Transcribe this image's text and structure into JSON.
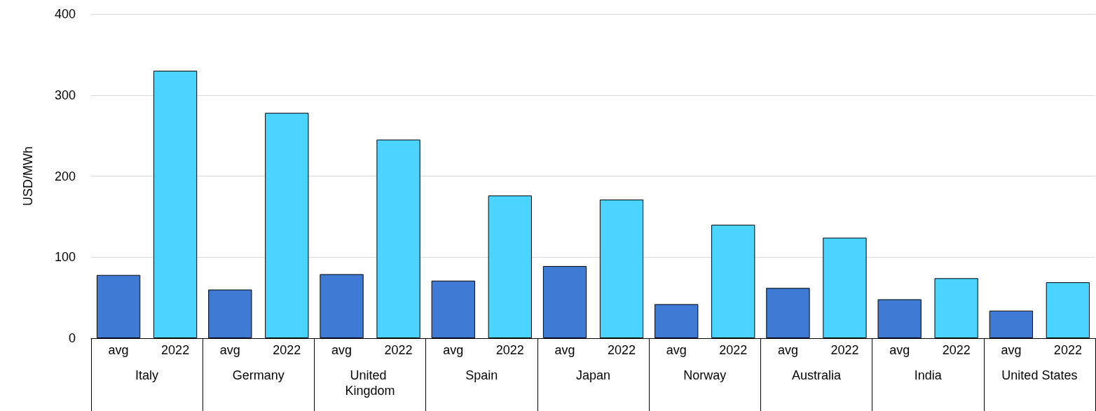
{
  "chart_data": {
    "type": "bar",
    "ylabel": "USD/MWh",
    "categories": [
      "Italy",
      "Germany",
      "United Kingdom",
      "Spain",
      "Japan",
      "Norway",
      "Australia",
      "India",
      "United States"
    ],
    "series": [
      {
        "name": "avg",
        "color": "#3f7bd4",
        "values": [
          78,
          60,
          79,
          71,
          89,
          42,
          62,
          48,
          34
        ]
      },
      {
        "name": "2022",
        "color": "#4ad4ff",
        "values": [
          330,
          278,
          245,
          176,
          171,
          140,
          124,
          74,
          69
        ]
      }
    ],
    "ylim": [
      0,
      400
    ],
    "yticks": [
      0,
      100,
      200,
      300,
      400
    ],
    "grid": "y",
    "legend": false
  }
}
